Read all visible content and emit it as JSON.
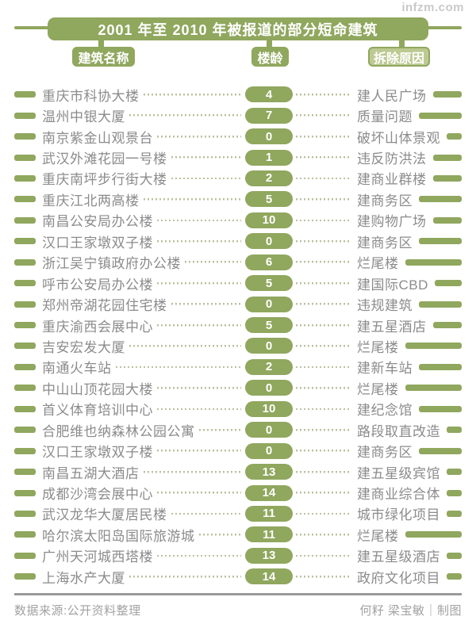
{
  "watermark": "infzm.com",
  "chart_data": {
    "type": "table",
    "title": "2001 年至 2010 年被报道的部分短命建筑",
    "columns": [
      "建筑名称",
      "楼龄",
      "拆除原因"
    ],
    "age_unit_note": "楼龄",
    "rows": [
      {
        "name": "重庆市科协大楼",
        "age": 4,
        "reason": "建人民广场"
      },
      {
        "name": "温州中银大厦",
        "age": 7,
        "reason": "质量问题"
      },
      {
        "name": "南京紫金山观景台",
        "age": 0,
        "reason": "破坏山体景观"
      },
      {
        "name": "武汉外滩花园一号楼",
        "age": 1,
        "reason": "违反防洪法"
      },
      {
        "name": "重庆南坪步行街大楼",
        "age": 2,
        "reason": "建商业群楼"
      },
      {
        "name": "重庆江北两高楼",
        "age": 5,
        "reason": "建商务区"
      },
      {
        "name": "南昌公安局办公楼",
        "age": 10,
        "reason": "建购物广场"
      },
      {
        "name": "汉口王家墩双子楼",
        "age": 0,
        "reason": "建商务区"
      },
      {
        "name": "浙江吴宁镇政府办公楼",
        "age": 6,
        "reason": "烂尾楼"
      },
      {
        "name": "呼市公安局办公楼",
        "age": 5,
        "reason": "建国际CBD"
      },
      {
        "name": "郑州帝湖花园住宅楼",
        "age": 0,
        "reason": "违规建筑"
      },
      {
        "name": "重庆渝西会展中心",
        "age": 5,
        "reason": "建五星酒店"
      },
      {
        "name": "吉安宏发大厦",
        "age": 0,
        "reason": "烂尾楼"
      },
      {
        "name": "南通火车站",
        "age": 2,
        "reason": "建新车站"
      },
      {
        "name": "中山山顶花园大楼",
        "age": 0,
        "reason": "烂尾楼"
      },
      {
        "name": "首义体育培训中心",
        "age": 10,
        "reason": "建纪念馆"
      },
      {
        "name": "合肥维也纳森林公园公寓",
        "age": 0,
        "reason": "路段取直改造"
      },
      {
        "name": "汉口王家墩双子楼",
        "age": 0,
        "reason": "建商务区"
      },
      {
        "name": "南昌五湖大酒店",
        "age": 13,
        "reason": "建五星级宾馆"
      },
      {
        "name": "成都沙湾会展中心",
        "age": 14,
        "reason": "建商业综合体"
      },
      {
        "name": "武汉龙华大厦居民楼",
        "age": 11,
        "reason": "城市绿化项目"
      },
      {
        "name": "哈尔滨太阳岛国际旅游城",
        "age": 11,
        "reason": "烂尾楼"
      },
      {
        "name": "广州天河城西塔楼",
        "age": 13,
        "reason": "建五星级酒店"
      },
      {
        "name": "上海水产大厦",
        "age": 14,
        "reason": "政府文化项目"
      }
    ]
  },
  "footer": {
    "source": "数据来源:公开资料整理",
    "credit": "何籽  梁宝敏｜制图"
  },
  "colors": {
    "green": "#90a75e",
    "label3_fill": "#bcca92",
    "text_gray": "#8b8b8b",
    "leader_dots": "#b9c29e",
    "footer_gray": "#a2a2a2",
    "watermark_gray": "#c9c9c9"
  }
}
